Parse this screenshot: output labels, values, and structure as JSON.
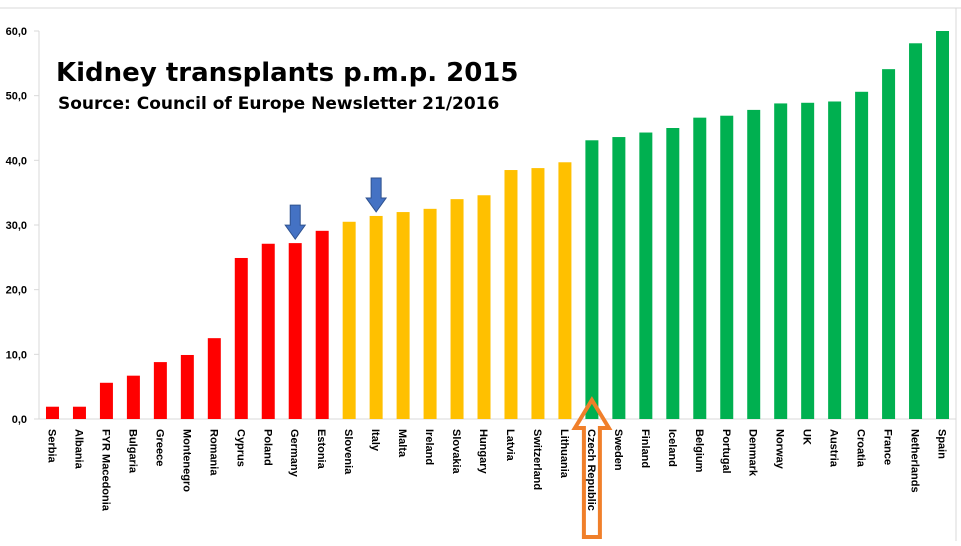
{
  "chart_data": {
    "type": "bar",
    "title": "Kidney transplants p.m.p. 2015",
    "subtitle": "Source: Council of Europe Newsletter 21/2016",
    "xlabel": "",
    "ylabel": "",
    "ylim": [
      0,
      60
    ],
    "yticks": [
      "0,0",
      "10,0",
      "20,0",
      "30,0",
      "40,0",
      "50,0",
      "60,0"
    ],
    "grid": false,
    "legend": "none",
    "categories": [
      "Serbia",
      "Albania",
      "FYR Macedonia",
      "Bulgaria",
      "Greece",
      "Montenegro",
      "Romania",
      "Cyprus",
      "Poland",
      "Germany",
      "Estonia",
      "Slovenia",
      "Italy",
      "Malta",
      "Ireland",
      "Slovakia",
      "Hungary",
      "Latvia",
      "Switzerland",
      "Lithuania",
      "Czech Republic",
      "Sweden",
      "Finland",
      "Iceland",
      "Belgium",
      "Portugal",
      "Denmark",
      "Norway",
      "UK",
      "Austria",
      "Croatia",
      "France",
      "Netherlands",
      "Spain"
    ],
    "values": [
      1.9,
      1.9,
      5.6,
      6.7,
      8.8,
      9.9,
      12.5,
      24.9,
      27.1,
      27.2,
      29.1,
      30.5,
      31.4,
      32.0,
      32.5,
      34.0,
      34.6,
      38.5,
      38.8,
      39.7,
      43.1,
      43.6,
      44.3,
      45.0,
      46.6,
      46.9,
      47.8,
      48.8,
      48.9,
      49.1,
      50.6,
      54.1,
      58.1,
      60.0
    ],
    "colors": [
      "#FF0000",
      "#FF0000",
      "#FF0000",
      "#FF0000",
      "#FF0000",
      "#FF0000",
      "#FF0000",
      "#FF0000",
      "#FF0000",
      "#FF0000",
      "#FF0000",
      "#FFC000",
      "#FFC000",
      "#FFC000",
      "#FFC000",
      "#FFC000",
      "#FFC000",
      "#FFC000",
      "#FFC000",
      "#FFC000",
      "#00B050",
      "#00B050",
      "#00B050",
      "#00B050",
      "#00B050",
      "#00B050",
      "#00B050",
      "#00B050",
      "#00B050",
      "#00B050",
      "#00B050",
      "#00B050",
      "#00B050",
      "#00B050"
    ],
    "annotations": [
      {
        "type": "down-arrow",
        "category": "Germany",
        "color": "#4472C4"
      },
      {
        "type": "down-arrow",
        "category": "Italy",
        "color": "#4472C4"
      },
      {
        "type": "up-arrow",
        "category": "Czech Republic",
        "color": "#F07F2A"
      }
    ]
  }
}
